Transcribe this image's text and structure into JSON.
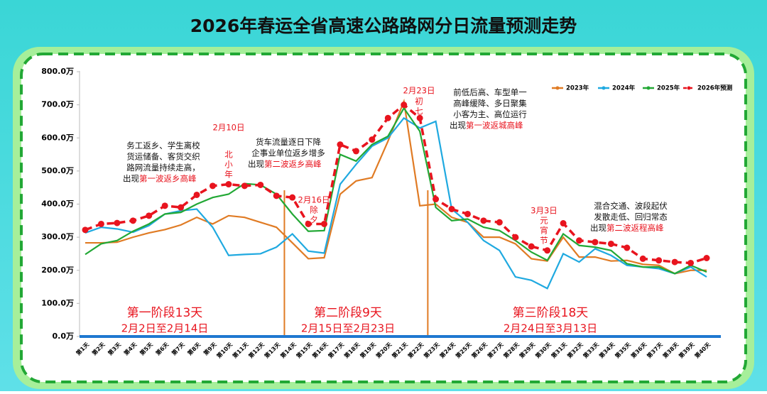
{
  "chart_data": {
    "type": "line",
    "title": "2026年春运全省高速公路路网分日流量预测走势",
    "categories": [
      "第1天",
      "第2天",
      "第3天",
      "第4天",
      "第5天",
      "第6天",
      "第7天",
      "第8天",
      "第9天",
      "第10天",
      "第11天",
      "第12天",
      "第13天",
      "第14天",
      "第15天",
      "第16天",
      "第17天",
      "第18天",
      "第19天",
      "第20天",
      "第21天",
      "第22天",
      "第23天",
      "第24天",
      "第25天",
      "第26天",
      "第27天",
      "第28天",
      "第29天",
      "第30天",
      "第31天",
      "第32天",
      "第33天",
      "第34天",
      "第35天",
      "第36天",
      "第37天",
      "第38天",
      "第39天",
      "第40天"
    ],
    "series": [
      {
        "name": "2023年",
        "color": "#e07b24",
        "values": [
          283,
          283,
          285,
          300,
          313,
          323,
          337,
          360,
          340,
          365,
          360,
          345,
          330,
          283,
          235,
          238,
          430,
          470,
          480,
          590,
          710,
          395,
          400,
          360,
          345,
          300,
          300,
          280,
          235,
          228,
          300,
          240,
          240,
          228,
          230,
          218,
          215,
          190,
          200,
          200
        ]
      },
      {
        "name": "2024年",
        "color": "#1fa9e0",
        "values": [
          313,
          330,
          325,
          315,
          335,
          370,
          380,
          385,
          330,
          245,
          248,
          250,
          270,
          310,
          258,
          252,
          460,
          520,
          575,
          600,
          660,
          630,
          650,
          385,
          345,
          290,
          260,
          180,
          170,
          145,
          250,
          225,
          265,
          245,
          215,
          210,
          205,
          190,
          210,
          180
        ]
      },
      {
        "name": "2025年",
        "color": "#22a835",
        "values": [
          248,
          280,
          290,
          318,
          340,
          370,
          375,
          400,
          420,
          430,
          462,
          458,
          430,
          370,
          318,
          320,
          550,
          530,
          580,
          605,
          690,
          620,
          390,
          350,
          355,
          330,
          320,
          290,
          255,
          230,
          310,
          275,
          270,
          260,
          220,
          210,
          210,
          190,
          215,
          195
        ]
      },
      {
        "name": "2026年预测",
        "color": "#e8141e",
        "dashed": true,
        "values": [
          322,
          340,
          343,
          350,
          365,
          395,
          390,
          428,
          455,
          460,
          455,
          458,
          425,
          420,
          340,
          340,
          580,
          560,
          595,
          660,
          700,
          660,
          415,
          385,
          370,
          350,
          345,
          300,
          272,
          260,
          342,
          290,
          285,
          280,
          268,
          235,
          230,
          225,
          222,
          237
        ]
      }
    ],
    "ylim": [
      0,
      800
    ],
    "yticks": [
      {
        "value": 0,
        "label": "0.0万"
      },
      {
        "value": 100,
        "label": "100.0万"
      },
      {
        "value": 200,
        "label": "200.0万"
      },
      {
        "value": 300,
        "label": "300.0万"
      },
      {
        "value": 400,
        "label": "400.0万"
      },
      {
        "value": 500,
        "label": "500.0万"
      },
      {
        "value": 600,
        "label": "600.0万"
      },
      {
        "value": 700,
        "label": "700.0万"
      },
      {
        "value": 800,
        "label": "800.0万"
      }
    ],
    "annotations": [
      {
        "lines": [
          "务工返乡、学生离校",
          "货运储备、客货交织",
          "路网流量持续走高，",
          "出现"
        ],
        "highlight": "第一波返乡高峰"
      },
      {
        "lines": [
          "货车流量逐日下降",
          "企事业单位返乡增多",
          "出现"
        ],
        "highlight": "第二波返乡高峰"
      },
      {
        "lines": [
          "前低后高、车型单一",
          "高峰缓降、多日聚集",
          "小客为主、高位运行",
          "出现"
        ],
        "highlight": "第一波返城高峰"
      },
      {
        "lines": [
          "混合交通、波段起伏",
          "发散走低、回归常态",
          "出现"
        ],
        "highlight": "第二波返程高峰"
      }
    ],
    "holidays": [
      {
        "date": "2月10日",
        "name": [
          "北",
          "小",
          "年"
        ]
      },
      {
        "date": "2月16日",
        "name": [
          "除",
          "夕"
        ]
      },
      {
        "date": "2月23日",
        "name": [
          "初",
          "七"
        ]
      },
      {
        "date": "3月3日",
        "name": [
          "元",
          "宵",
          "节"
        ]
      }
    ],
    "phases": [
      {
        "name": "第一阶段13天",
        "range": "2月2日至2月14日"
      },
      {
        "name": "第二阶段9天",
        "range": "2月15日至2月23日"
      },
      {
        "name": "第三阶段18天",
        "range": "2月24日至3月13日"
      }
    ]
  }
}
